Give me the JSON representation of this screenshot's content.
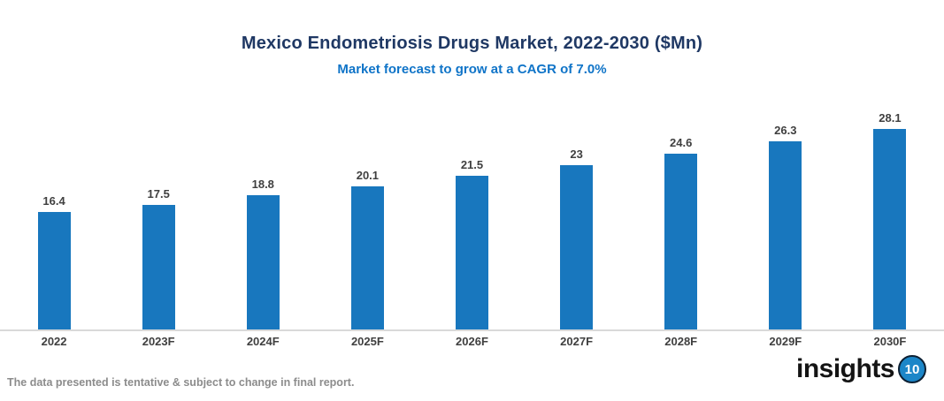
{
  "header": {
    "title": "Mexico Endometriosis Drugs Market, 2022-2030 ($Mn)",
    "subtitle": "Market forecast to grow at a CAGR of 7.0%"
  },
  "chart_data": {
    "type": "bar",
    "categories": [
      "2022",
      "2023F",
      "2024F",
      "2025F",
      "2026F",
      "2027F",
      "2028F",
      "2029F",
      "2030F"
    ],
    "values": [
      16.4,
      17.5,
      18.8,
      20.1,
      21.5,
      23,
      24.6,
      26.3,
      28.1
    ],
    "value_labels": [
      "16.4",
      "17.5",
      "18.8",
      "20.1",
      "21.5",
      "23",
      "24.6",
      "26.3",
      "28.1"
    ],
    "title": "Mexico Endometriosis Drugs Market, 2022-2030 ($Mn)",
    "subtitle": "Market forecast to grow at a CAGR of 7.0%",
    "xlabel": "",
    "ylabel": "",
    "ylim": [
      0,
      30
    ],
    "grid": false,
    "legend": false,
    "data_labels_shown": true,
    "bar_color": "#1877BE"
  },
  "colors": {
    "title": "#1F3864",
    "subtitle": "#0F74C8",
    "bar": "#1877BE",
    "axis_line": "#D9D9D9",
    "data_label": "#3F3F3F",
    "footer": "#8C8C8C",
    "logo_circle": "#1C86C8"
  },
  "footer": {
    "note": "The data presented is tentative & subject to change in final report.",
    "logo_text": "insights",
    "logo_badge": "10"
  }
}
